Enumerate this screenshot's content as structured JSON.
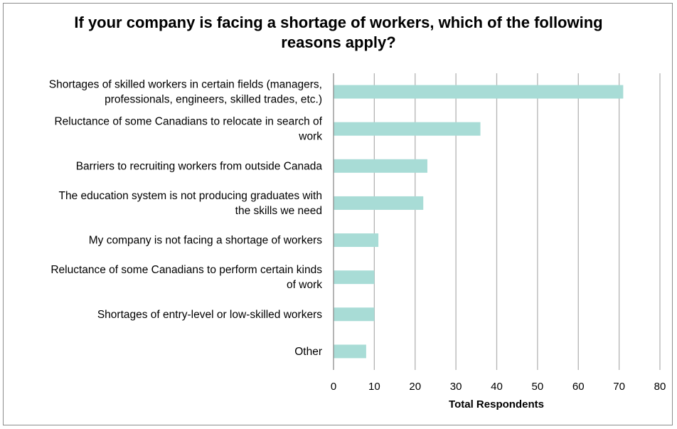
{
  "chart_data": {
    "type": "bar",
    "orientation": "horizontal",
    "title": "If your company is facing a shortage of workers, which of the following reasons apply?",
    "xlabel": "Total Respondents",
    "ylabel": "",
    "xlim": [
      0,
      80
    ],
    "xticks": [
      0,
      10,
      20,
      30,
      40,
      50,
      60,
      70,
      80
    ],
    "grid": true,
    "bar_color": "#a8dcd6",
    "categories": [
      [
        "Shortages of skilled workers in certain fields (managers,",
        "professionals, engineers, skilled trades, etc.)"
      ],
      [
        "Reluctance of some Canadians to relocate in search of",
        "work"
      ],
      [
        "Barriers to recruiting workers from outside Canada"
      ],
      [
        "The education system is not producing graduates with",
        "the skills we need"
      ],
      [
        "My company is not facing a shortage of workers"
      ],
      [
        "Reluctance of some Canadians to perform certain kinds",
        "of work"
      ],
      [
        "Shortages of entry-level or low-skilled workers"
      ],
      [
        "Other"
      ]
    ],
    "values": [
      71,
      36,
      23,
      22,
      11,
      10,
      10,
      8
    ]
  }
}
